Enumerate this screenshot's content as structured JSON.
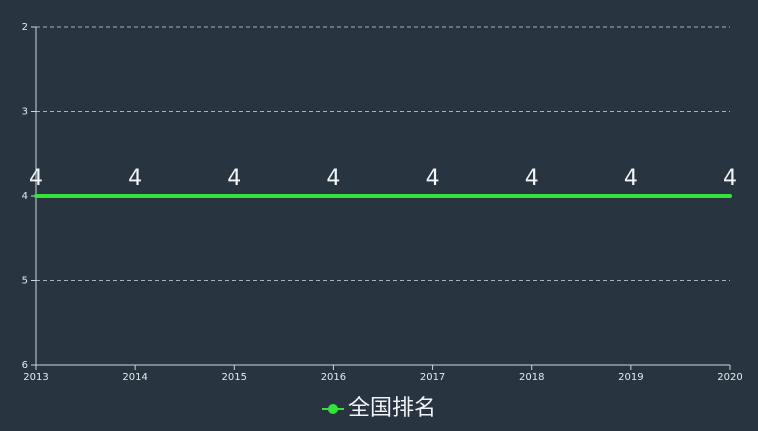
{
  "chart_data": {
    "type": "line",
    "categories": [
      "2013",
      "2014",
      "2015",
      "2016",
      "2017",
      "2018",
      "2019",
      "2020"
    ],
    "series": [
      {
        "name": "全国排名",
        "values": [
          4,
          4,
          4,
          4,
          4,
          4,
          4,
          4
        ],
        "color": "#33e33a"
      }
    ],
    "ylim": [
      2,
      6
    ],
    "y_inverted": true,
    "y_ticks": [
      "2",
      "3",
      "4",
      "5",
      "6"
    ],
    "grid": true,
    "legend": "bottom-center",
    "data_labels": true,
    "colors": {
      "background": "#283440",
      "axis": "#cfd5db",
      "grid": "#aab2ba",
      "text": "#e8eaec"
    }
  }
}
